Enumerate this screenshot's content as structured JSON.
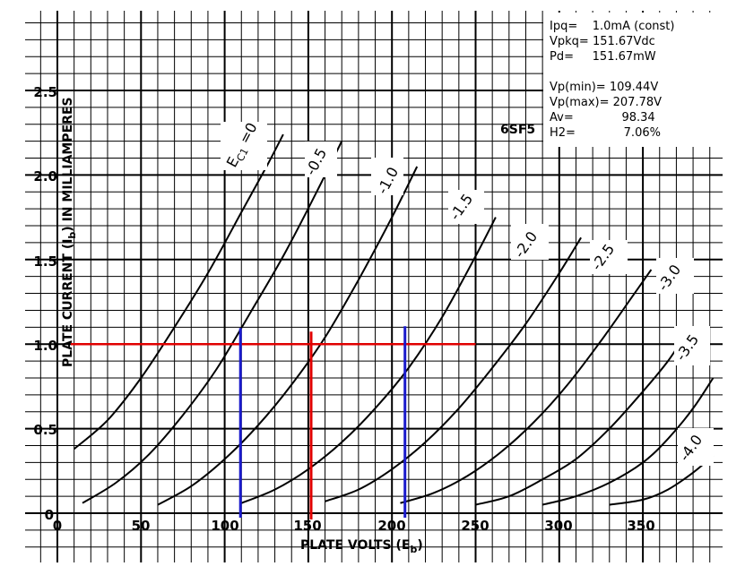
{
  "chart_data": {
    "type": "line",
    "tube": "6SF5",
    "xlabel": "PLATE VOLTS (E",
    "xlabel_sub": "b",
    "ylabel": "PLATE CURRENT (I",
    "ylabel_sub": "b",
    "ylabel_tail": ") IN MILLIAMPERES",
    "xlim": [
      0,
      400
    ],
    "ylim": [
      0,
      2.5
    ],
    "x_ticks": [
      "0",
      "50",
      "100",
      "150",
      "200",
      "250",
      "300",
      "350"
    ],
    "y_ticks": [
      "0",
      "0.5",
      "1.0",
      "1.5",
      "2.0",
      "2.5"
    ],
    "grid": true,
    "series": [
      {
        "name": "E C1 =0",
        "points": [
          [
            10,
            0.38
          ],
          [
            30,
            0.55
          ],
          [
            50,
            0.8
          ],
          [
            70,
            1.1
          ],
          [
            90,
            1.42
          ],
          [
            110,
            1.78
          ],
          [
            125,
            2.05
          ],
          [
            135,
            2.24
          ]
        ]
      },
      {
        "name": "-0.5",
        "points": [
          [
            15,
            0.06
          ],
          [
            35,
            0.18
          ],
          [
            55,
            0.35
          ],
          [
            75,
            0.58
          ],
          [
            95,
            0.85
          ],
          [
            115,
            1.18
          ],
          [
            135,
            1.52
          ],
          [
            155,
            1.9
          ],
          [
            170,
            2.2
          ]
        ]
      },
      {
        "name": "-1.0",
        "points": [
          [
            60,
            0.05
          ],
          [
            80,
            0.16
          ],
          [
            100,
            0.32
          ],
          [
            120,
            0.52
          ],
          [
            140,
            0.76
          ],
          [
            160,
            1.04
          ],
          [
            180,
            1.38
          ],
          [
            200,
            1.75
          ],
          [
            215,
            2.05
          ]
        ]
      },
      {
        "name": "-1.5",
        "points": [
          [
            110,
            0.06
          ],
          [
            130,
            0.14
          ],
          [
            150,
            0.26
          ],
          [
            170,
            0.42
          ],
          [
            190,
            0.62
          ],
          [
            210,
            0.86
          ],
          [
            230,
            1.16
          ],
          [
            250,
            1.52
          ],
          [
            262,
            1.75
          ]
        ]
      },
      {
        "name": "-2.0",
        "points": [
          [
            160,
            0.07
          ],
          [
            180,
            0.14
          ],
          [
            200,
            0.26
          ],
          [
            220,
            0.42
          ],
          [
            240,
            0.62
          ],
          [
            260,
            0.86
          ],
          [
            280,
            1.12
          ],
          [
            300,
            1.42
          ],
          [
            313,
            1.63
          ]
        ]
      },
      {
        "name": "-2.5",
        "points": [
          [
            205,
            0.06
          ],
          [
            225,
            0.12
          ],
          [
            245,
            0.22
          ],
          [
            265,
            0.36
          ],
          [
            285,
            0.54
          ],
          [
            305,
            0.76
          ],
          [
            325,
            1.02
          ],
          [
            345,
            1.3
          ],
          [
            355,
            1.44
          ]
        ]
      },
      {
        "name": "-3.0",
        "points": [
          [
            250,
            0.05
          ],
          [
            270,
            0.1
          ],
          [
            290,
            0.2
          ],
          [
            310,
            0.32
          ],
          [
            330,
            0.5
          ],
          [
            350,
            0.72
          ],
          [
            365,
            0.9
          ],
          [
            375,
            1.05
          ]
        ]
      },
      {
        "name": "-3.5",
        "points": [
          [
            290,
            0.05
          ],
          [
            310,
            0.1
          ],
          [
            330,
            0.18
          ],
          [
            350,
            0.3
          ],
          [
            365,
            0.44
          ],
          [
            380,
            0.62
          ],
          [
            392,
            0.8
          ]
        ]
      },
      {
        "name": "-4.0",
        "points": [
          [
            330,
            0.05
          ],
          [
            350,
            0.08
          ],
          [
            365,
            0.14
          ],
          [
            380,
            0.24
          ],
          [
            392,
            0.34
          ]
        ]
      }
    ],
    "load_line": {
      "iq": 1.0,
      "x_start": 8,
      "x_end": 250,
      "vq": 151.67,
      "vmin": 109.44,
      "vmax": 207.78
    },
    "colors": {
      "curve": "#000000",
      "grid": "#000000",
      "operating": "#e00000",
      "swing": "#1a1acc"
    }
  },
  "info": {
    "ipq": "Ipq=    1.0mA (const)",
    "vpkq": "Vpkq= 151.67Vdc",
    "pd": "Pd=     151.67mW",
    "vpmin": "Vp(min)= 109.44V",
    "vpmax": "Vp(max)= 207.78V",
    "av": "Av=             98.34",
    "h2": "H2=             7.06%"
  }
}
